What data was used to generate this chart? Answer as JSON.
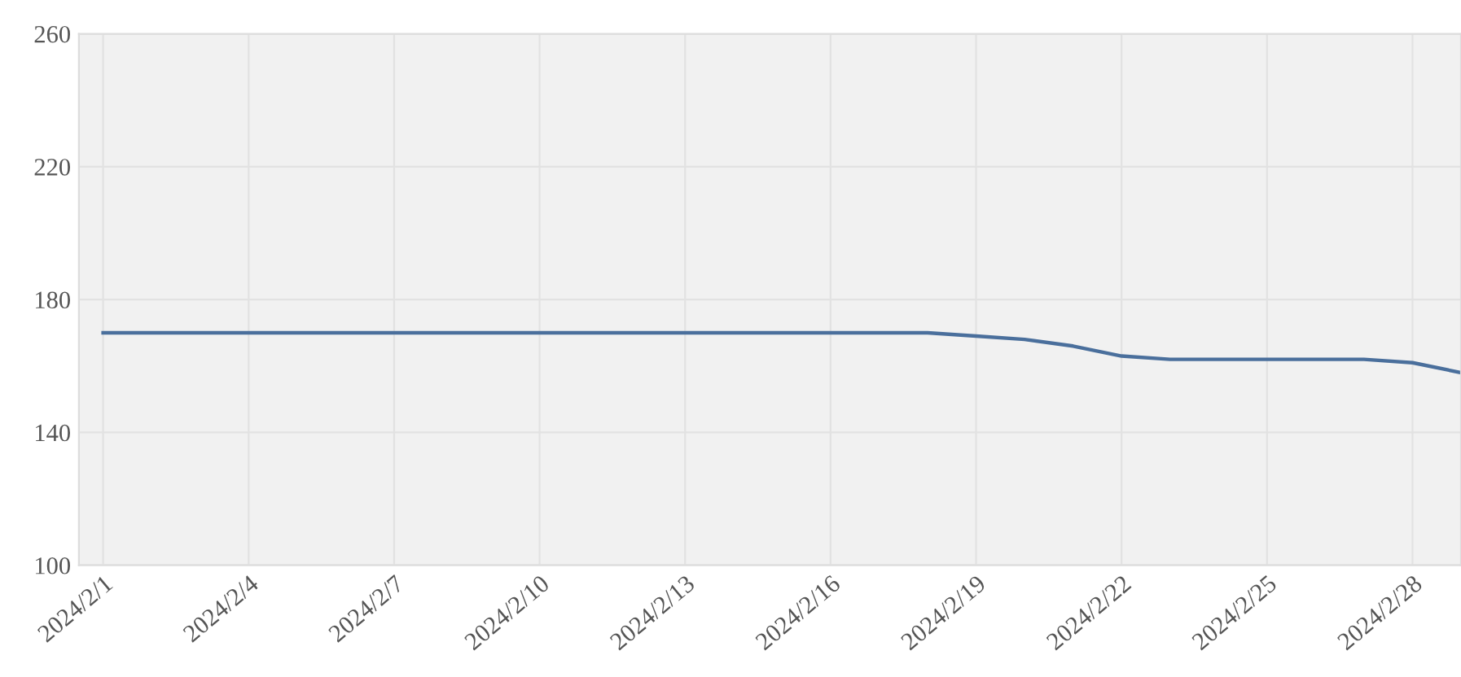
{
  "chart_data": {
    "type": "line",
    "x": [
      "2024-02-01",
      "2024-02-02",
      "2024-02-03",
      "2024-02-04",
      "2024-02-05",
      "2024-02-06",
      "2024-02-07",
      "2024-02-08",
      "2024-02-09",
      "2024-02-10",
      "2024-02-11",
      "2024-02-12",
      "2024-02-13",
      "2024-02-14",
      "2024-02-15",
      "2024-02-16",
      "2024-02-17",
      "2024-02-18",
      "2024-02-19",
      "2024-02-20",
      "2024-02-21",
      "2024-02-22",
      "2024-02-23",
      "2024-02-24",
      "2024-02-25",
      "2024-02-26",
      "2024-02-27",
      "2024-02-28",
      "2024-02-29"
    ],
    "series": [
      {
        "color": "#4a6f9c",
        "values": [
          170,
          170,
          170,
          170,
          170,
          170,
          170,
          170,
          170,
          170,
          170,
          170,
          170,
          170,
          170,
          170,
          170,
          170,
          169,
          168,
          166,
          163,
          162,
          162,
          162,
          162,
          162,
          161,
          158
        ]
      }
    ],
    "xlim": [
      "2024-01-31T12:00",
      "2024-02-29"
    ],
    "xticks": [
      {
        "value": "2024-02-01",
        "label": "2024/2/1"
      },
      {
        "value": "2024-02-04",
        "label": "2024/2/4"
      },
      {
        "value": "2024-02-07",
        "label": "2024/2/7"
      },
      {
        "value": "2024-02-10",
        "label": "2024/2/10"
      },
      {
        "value": "2024-02-13",
        "label": "2024/2/13"
      },
      {
        "value": "2024-02-16",
        "label": "2024/2/16"
      },
      {
        "value": "2024-02-19",
        "label": "2024/2/19"
      },
      {
        "value": "2024-02-22",
        "label": "2024/2/22"
      },
      {
        "value": "2024-02-25",
        "label": "2024/2/25"
      },
      {
        "value": "2024-02-28",
        "label": "2024/2/28"
      }
    ],
    "ylim": [
      100,
      260
    ],
    "yticks": [
      100,
      140,
      180,
      220,
      260
    ],
    "grid": true,
    "marker": "none",
    "line_style": "solid"
  }
}
